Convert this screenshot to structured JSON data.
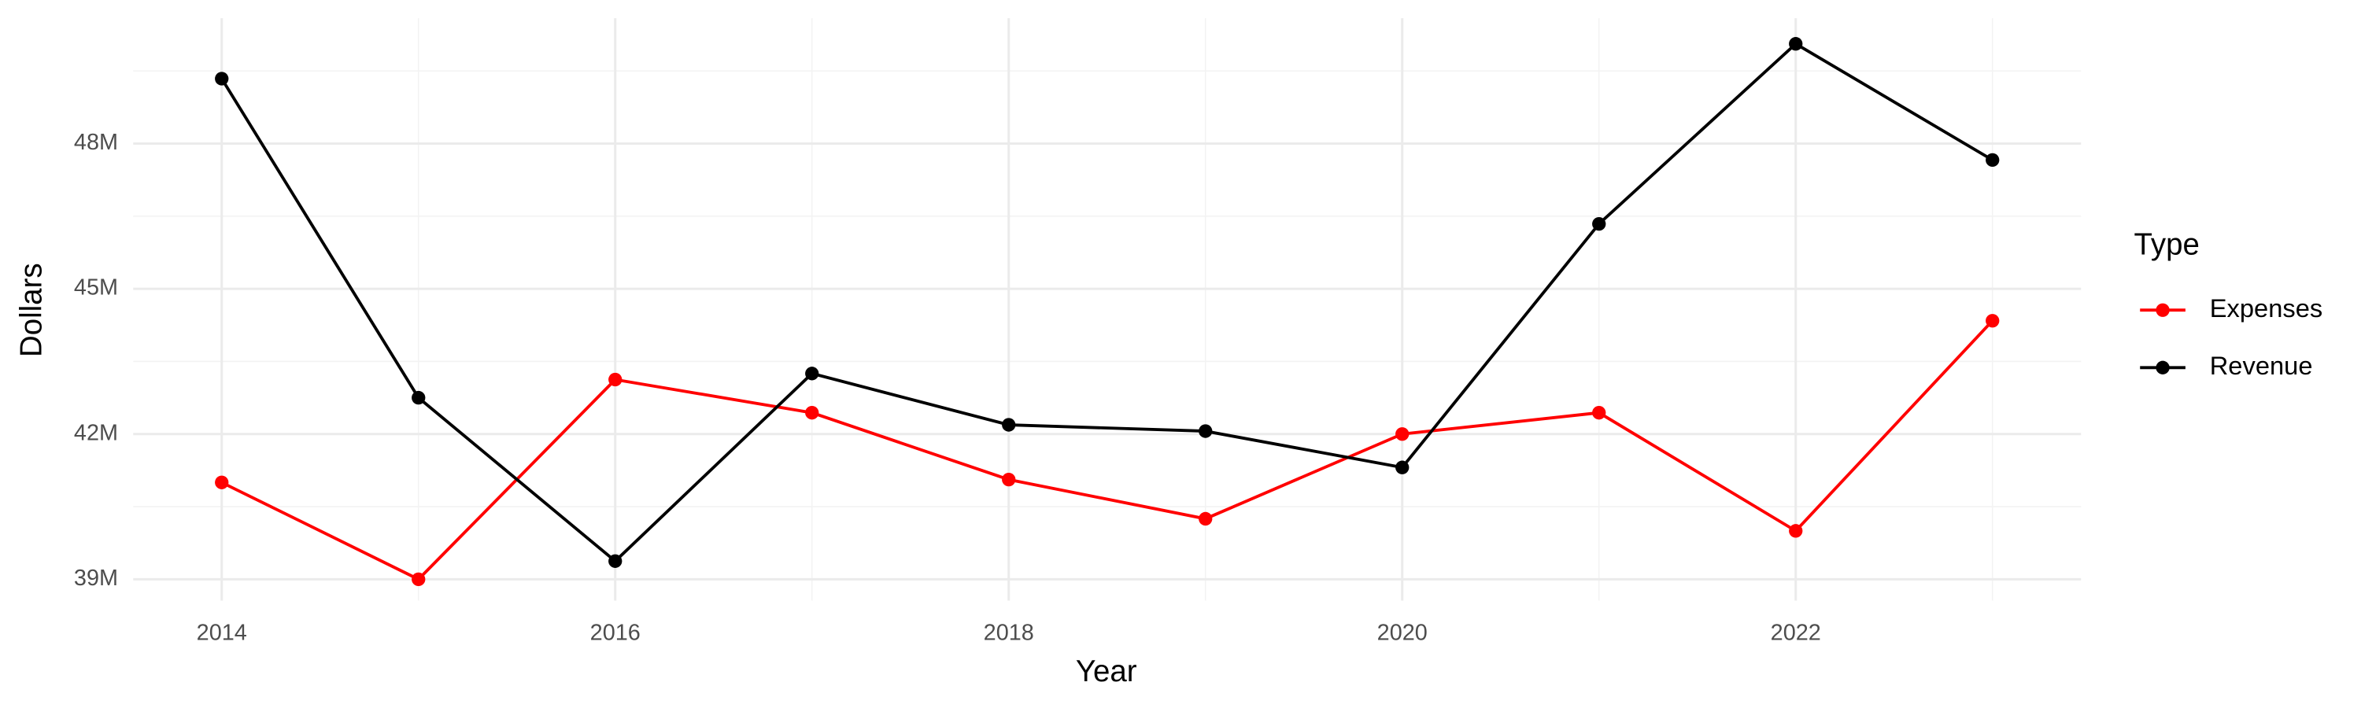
{
  "chart_data": {
    "type": "line",
    "x_label": "Year",
    "y_label": "Dollars",
    "legend_title": "Type",
    "x": [
      2014,
      2015,
      2016,
      2017,
      2018,
      2019,
      2020,
      2021,
      2022,
      2023
    ],
    "series": [
      {
        "name": "Expenses",
        "color": "#ff0000",
        "values": [
          41000000,
          39000000,
          43125000,
          42440000,
          41060000,
          40250000,
          42000000,
          42440000,
          40000000,
          44340000
        ]
      },
      {
        "name": "Revenue",
        "color": "#000000",
        "values": [
          49340000,
          42750000,
          39375000,
          43250000,
          42190000,
          42060000,
          41310000,
          46340000,
          50060000,
          47660000
        ]
      }
    ],
    "xlim": [
      2013.55,
      2023.45
    ],
    "xticks": [
      2014,
      2016,
      2018,
      2020,
      2022
    ],
    "ylim": [
      38560000,
      50590000
    ],
    "yticks": [
      {
        "value": 39000000,
        "label": "39M"
      },
      {
        "value": 42000000,
        "label": "42M"
      },
      {
        "value": 45000000,
        "label": "45M"
      },
      {
        "value": 48000000,
        "label": "48M"
      }
    ],
    "grid": true,
    "legend_position": "right"
  }
}
